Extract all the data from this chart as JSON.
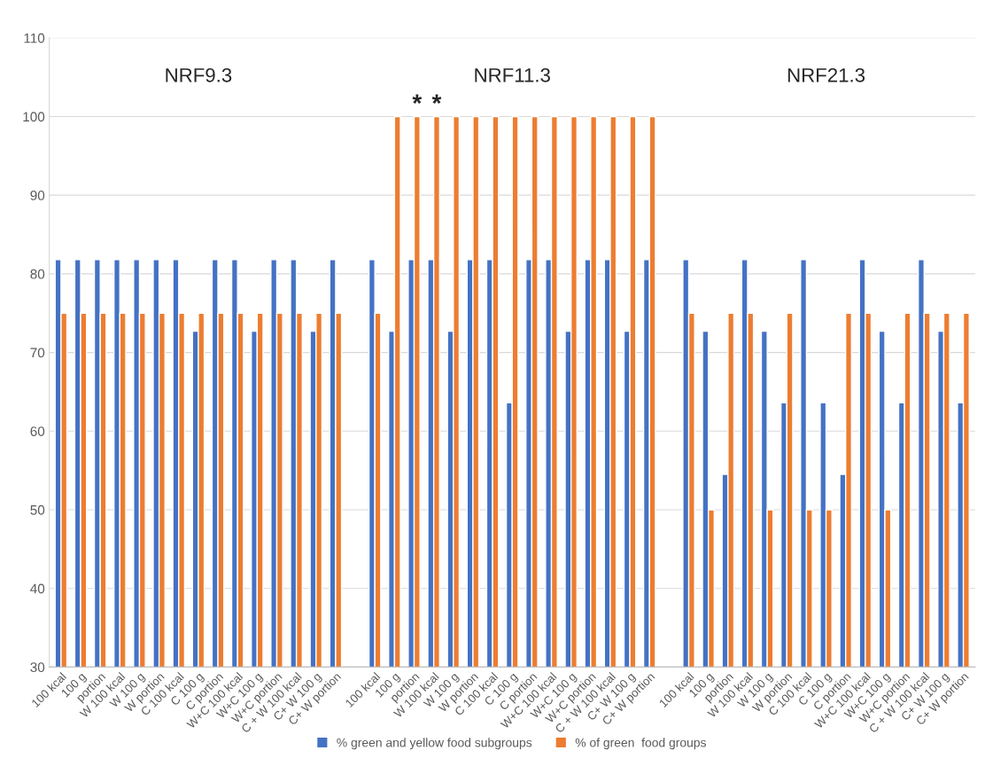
{
  "chart_data": {
    "type": "bar",
    "categories": [
      "100 kcal",
      "100 g",
      "portion",
      "W 100 kcal",
      "W 100 g",
      "W portion",
      "C 100 kcal",
      "C 100 g",
      "C portion",
      "W+C 100 kcal",
      "W+C 100 g",
      "W+C portion",
      "C + W 100 kcal",
      "C+ W 100 g",
      "C+ W portion",
      null,
      "100 kcal",
      "100 g",
      "portion",
      "W 100 kcal",
      "W 100 g",
      "W portion",
      "C 100 kcal",
      "C 100 g",
      "C portion",
      "W+C 100 kcal",
      "W+C 100 g",
      "W+C portion",
      "C + W 100 kcal",
      "C+ W 100 g",
      "C+ W portion",
      null,
      "100 kcal",
      "100 g",
      "portion",
      "W 100 kcal",
      "W 100 g",
      "W portion",
      "C 100 kcal",
      "C 100 g",
      "C portion",
      "W+C 100 kcal",
      "W+C 100 g",
      "W+C portion",
      "C + W 100 kcal",
      "C+ W 100 g",
      "C+ W portion"
    ],
    "series": [
      {
        "name": "% green and yellow food subgroups",
        "color": "#4472c4",
        "values": [
          81.8,
          81.8,
          81.8,
          81.8,
          81.8,
          81.8,
          81.8,
          72.7,
          81.8,
          81.8,
          72.7,
          81.8,
          81.8,
          72.7,
          81.8,
          null,
          81.8,
          72.7,
          81.8,
          81.8,
          72.7,
          81.8,
          81.8,
          63.6,
          81.8,
          81.8,
          72.7,
          81.8,
          81.8,
          72.7,
          81.8,
          null,
          81.8,
          72.7,
          54.5,
          81.8,
          72.7,
          63.6,
          81.8,
          63.6,
          54.5,
          81.8,
          72.7,
          63.6,
          81.8,
          72.7,
          63.6
        ]
      },
      {
        "name": "% of green  food groups",
        "color": "#ed7d31",
        "values": [
          75,
          75,
          75,
          75,
          75,
          75,
          75,
          75,
          75,
          75,
          75,
          75,
          75,
          75,
          75,
          null,
          75,
          100,
          100,
          100,
          100,
          100,
          100,
          100,
          100,
          100,
          100,
          100,
          100,
          100,
          100,
          null,
          75,
          50,
          75,
          75,
          50,
          75,
          50,
          50,
          75,
          75,
          50,
          75,
          75,
          75,
          75
        ],
        "value_labels": [
          null,
          null,
          null,
          null,
          null,
          null,
          null,
          null,
          null,
          null,
          null,
          null,
          null,
          null,
          null,
          null,
          null,
          null,
          "*",
          "*",
          null,
          null,
          null,
          null,
          null,
          null,
          null,
          null,
          null,
          null,
          null,
          null,
          null,
          null,
          null,
          null,
          null,
          null,
          null,
          null,
          null,
          null,
          null,
          null,
          null,
          null,
          null
        ]
      }
    ],
    "annotations": [
      "NRF9.3",
      "NRF11.3",
      "NRF21.3"
    ],
    "ylim": [
      30,
      110
    ],
    "yticks": [
      30,
      40,
      50,
      60,
      70,
      80,
      90,
      100,
      110
    ],
    "grid": "y",
    "legend": "bottom"
  }
}
